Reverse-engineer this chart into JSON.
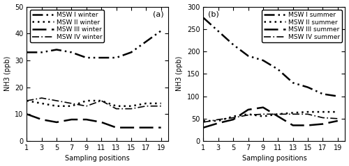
{
  "x": [
    1,
    3,
    5,
    7,
    9,
    11,
    13,
    15,
    17,
    19
  ],
  "winter": {
    "MSW_I": [
      33,
      33,
      34,
      33,
      31,
      31,
      31,
      33,
      37,
      41
    ],
    "MSW_II": [
      15,
      14,
      13,
      13,
      15,
      15,
      13,
      13,
      14,
      14
    ],
    "MSW_III": [
      10,
      8,
      7,
      8,
      8,
      7,
      5,
      5,
      5,
      5
    ],
    "MSW_IV": [
      15,
      16,
      15,
      14,
      13,
      15,
      12,
      12,
      13,
      13
    ]
  },
  "summer": {
    "MSW_I": [
      275,
      245,
      215,
      190,
      180,
      160,
      130,
      120,
      105,
      100
    ],
    "MSW_II": [
      45,
      45,
      55,
      60,
      55,
      60,
      63,
      65,
      65,
      65
    ],
    "MSW_III": [
      30,
      40,
      48,
      70,
      75,
      55,
      35,
      35,
      38,
      45
    ],
    "MSW_IV": [
      42,
      48,
      52,
      58,
      60,
      60,
      60,
      60,
      52,
      50
    ]
  },
  "winter_ylim": [
    0,
    50
  ],
  "summer_ylim": [
    0,
    300
  ],
  "winter_yticks": [
    0,
    10,
    20,
    30,
    40,
    50
  ],
  "summer_yticks": [
    0,
    50,
    100,
    150,
    200,
    250,
    300
  ],
  "xticks": [
    1,
    3,
    5,
    7,
    9,
    11,
    13,
    15,
    17,
    19
  ],
  "xlabel": "Sampling positions",
  "ylabel": "NH3 (ppb)",
  "label_a": "(a)",
  "label_b": "(b)",
  "winter_legend_labels": [
    "MSW I winter",
    "MSW II winter",
    "MSW III winter",
    "MSW IV winter"
  ],
  "summer_legend_labels": [
    "MSW I summer",
    "MSW II summer",
    "MSW III summer",
    "MSW IV summer"
  ],
  "bg_color": "white",
  "font_size": 7
}
